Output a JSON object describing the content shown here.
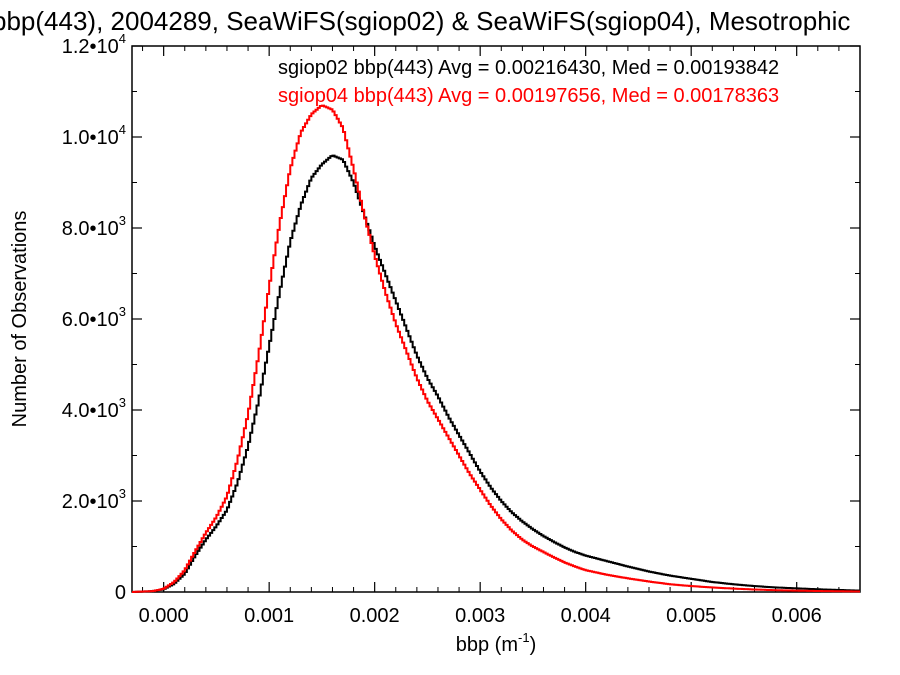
{
  "chart_data": {
    "type": "histogram-step",
    "title": "bbp(443), 2004289, SeaWiFS(sgiop02) & SeaWiFS(sgiop04), Mesotrophic",
    "xlabel": "bbp (m",
    "xlabel_sup": "-1",
    "xlabel_close": ")",
    "ylabel": "Number of Observations",
    "xlim": [
      -0.0003,
      0.0066
    ],
    "ylim": [
      0,
      12000
    ],
    "x_ticks": [
      {
        "value": 0.0,
        "label": "0.000"
      },
      {
        "value": 0.001,
        "label": "0.001"
      },
      {
        "value": 0.002,
        "label": "0.002"
      },
      {
        "value": 0.003,
        "label": "0.003"
      },
      {
        "value": 0.004,
        "label": "0.004"
      },
      {
        "value": 0.005,
        "label": "0.005"
      },
      {
        "value": 0.006,
        "label": "0.006"
      }
    ],
    "y_ticks": [
      {
        "value": 0,
        "mantissa": "0",
        "exp": ""
      },
      {
        "value": 2000,
        "mantissa": "2.0•10",
        "exp": "3"
      },
      {
        "value": 4000,
        "mantissa": "4.0•10",
        "exp": "3"
      },
      {
        "value": 6000,
        "mantissa": "6.0•10",
        "exp": "3"
      },
      {
        "value": 8000,
        "mantissa": "8.0•10",
        "exp": "3"
      },
      {
        "value": 10000,
        "mantissa": "1.0•10",
        "exp": "4"
      },
      {
        "value": 12000,
        "mantissa": "1.2•10",
        "exp": "4"
      }
    ],
    "series": [
      {
        "name": "sgiop02 bbp(443) Avg = 0.00216430, Med = 0.00193842",
        "color": "#000000",
        "x": [
          -0.0003,
          -0.0001,
          0.0,
          0.0001,
          0.0002,
          0.0003,
          0.0004,
          0.0005,
          0.0006,
          0.0007,
          0.0008,
          0.0009,
          0.001,
          0.0011,
          0.0012,
          0.0013,
          0.0014,
          0.0015,
          0.0016,
          0.0017,
          0.0018,
          0.0019,
          0.002,
          0.0021,
          0.0022,
          0.0023,
          0.0024,
          0.0025,
          0.0026,
          0.0027,
          0.0028,
          0.0029,
          0.003,
          0.0031,
          0.0032,
          0.0033,
          0.0034,
          0.0035,
          0.0036,
          0.0037,
          0.0038,
          0.0039,
          0.004,
          0.0042,
          0.0044,
          0.0046,
          0.0048,
          0.005,
          0.0052,
          0.0054,
          0.0056,
          0.0058,
          0.006,
          0.0062,
          0.0064,
          0.0066
        ],
        "y": [
          0,
          20,
          60,
          180,
          400,
          800,
          1150,
          1450,
          1800,
          2400,
          3200,
          4200,
          5400,
          6600,
          7700,
          8500,
          9100,
          9400,
          9600,
          9500,
          9000,
          8300,
          7600,
          7000,
          6400,
          5800,
          5200,
          4700,
          4300,
          3850,
          3450,
          3050,
          2650,
          2300,
          2000,
          1750,
          1550,
          1380,
          1230,
          1100,
          980,
          880,
          800,
          680,
          560,
          450,
          360,
          290,
          220,
          170,
          130,
          100,
          80,
          60,
          45,
          30
        ]
      },
      {
        "name": "sgiop04 bbp(443) Avg = 0.00197656, Med = 0.00178363",
        "color": "#ff0000",
        "x": [
          -0.0003,
          -0.0001,
          0.0,
          0.0001,
          0.0002,
          0.0003,
          0.0004,
          0.0005,
          0.0006,
          0.0007,
          0.0008,
          0.0009,
          0.001,
          0.0011,
          0.0012,
          0.0013,
          0.0014,
          0.0015,
          0.0016,
          0.0017,
          0.0018,
          0.0019,
          0.002,
          0.0021,
          0.0022,
          0.0023,
          0.0024,
          0.0025,
          0.0026,
          0.0027,
          0.0028,
          0.0029,
          0.003,
          0.0031,
          0.0032,
          0.0033,
          0.0034,
          0.0035,
          0.0036,
          0.0037,
          0.0038,
          0.0039,
          0.004,
          0.0042,
          0.0044,
          0.0046,
          0.0048,
          0.005,
          0.0052,
          0.0054,
          0.0056,
          0.0058,
          0.006,
          0.0062,
          0.0064,
          0.0066
        ],
        "y": [
          0,
          20,
          70,
          220,
          480,
          900,
          1300,
          1650,
          2100,
          2900,
          3900,
          5200,
          6700,
          8100,
          9300,
          10100,
          10500,
          10700,
          10600,
          10200,
          9300,
          8300,
          7400,
          6600,
          5900,
          5300,
          4700,
          4200,
          3800,
          3400,
          3000,
          2600,
          2250,
          1900,
          1600,
          1350,
          1150,
          1000,
          880,
          760,
          650,
          560,
          480,
          380,
          300,
          230,
          170,
          130,
          100,
          75,
          55,
          40,
          30,
          22,
          16,
          10
        ]
      }
    ],
    "grid": false,
    "legend_position": "top-right"
  }
}
